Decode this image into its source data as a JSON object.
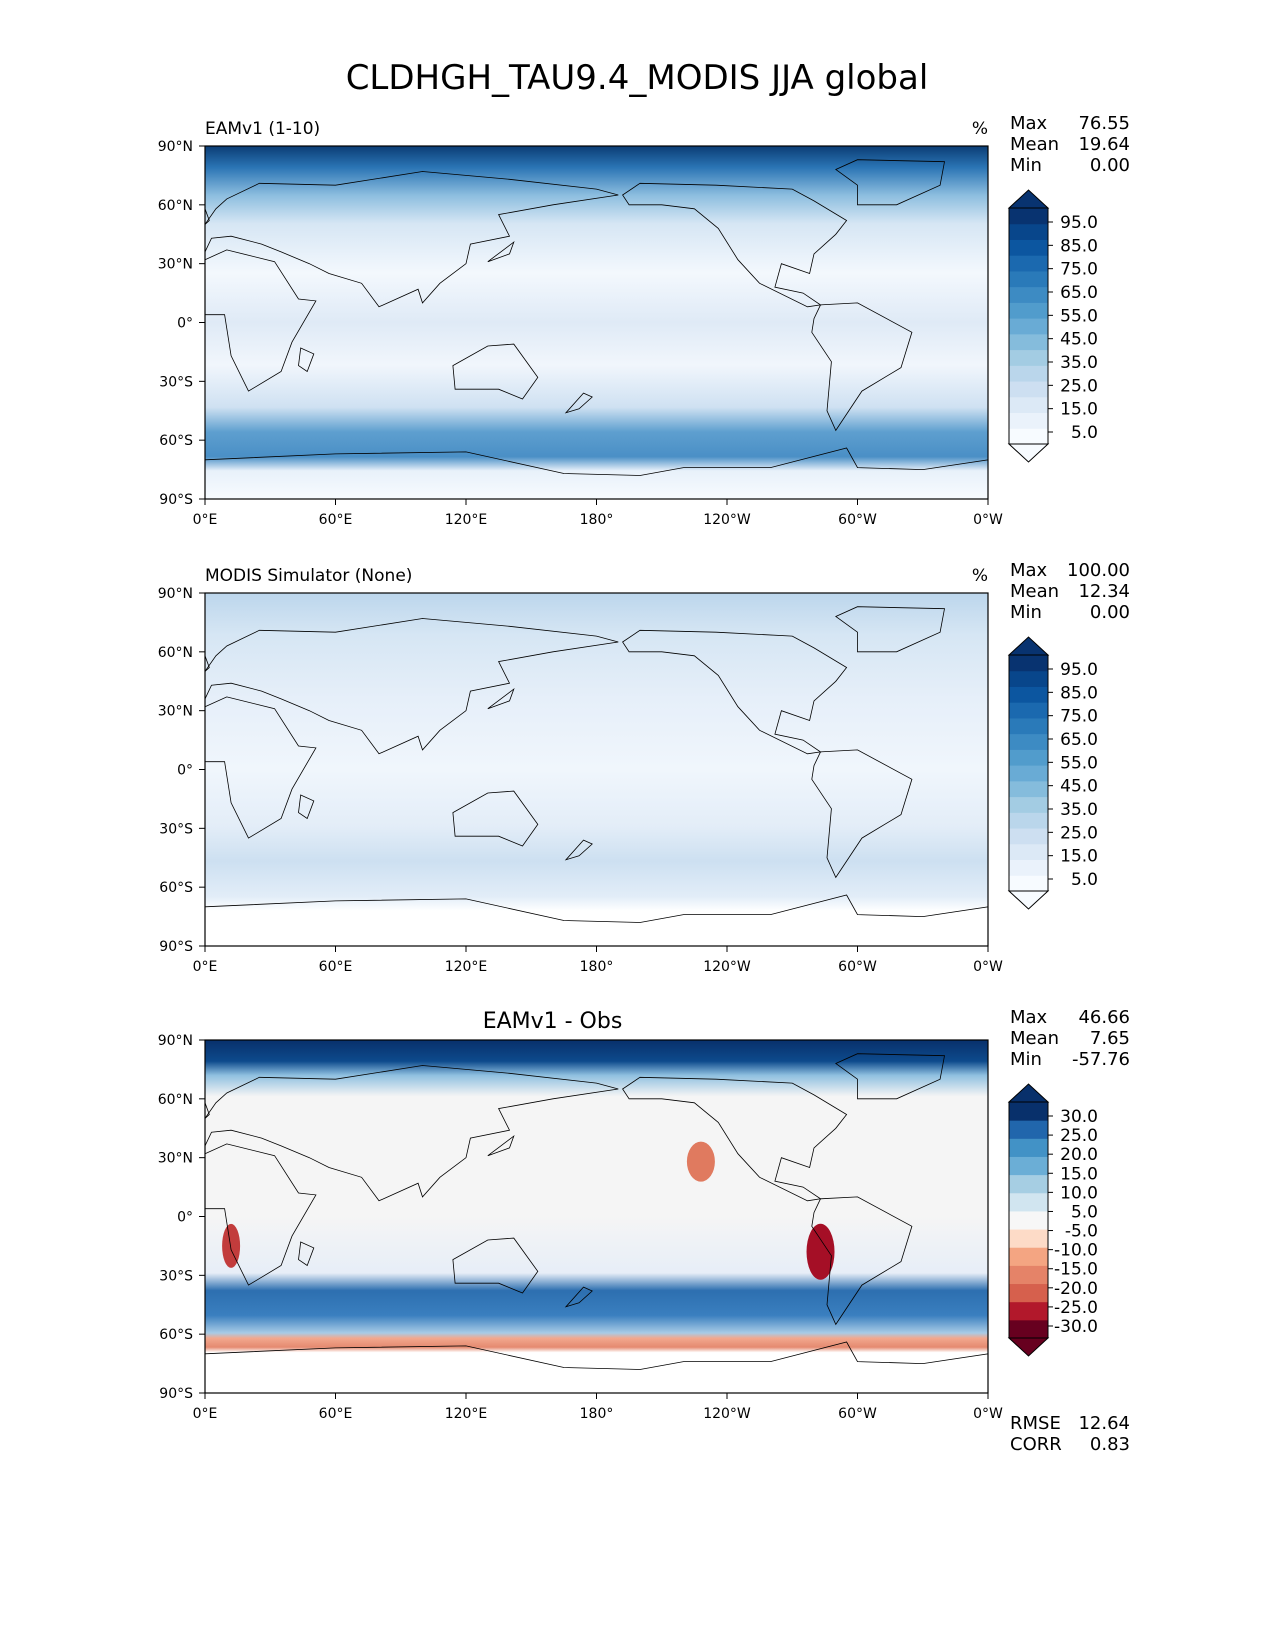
{
  "figure": {
    "title": "CLDHGH_TAU9.4_MODIS JJA global"
  },
  "chart_data": [
    {
      "type": "heatmap",
      "title": "EAMv1 (1-10)",
      "title_position": "left",
      "units": "%",
      "stats": [
        {
          "label": "Max",
          "value": "76.55"
        },
        {
          "label": "Mean",
          "value": "19.64"
        },
        {
          "label": "Min",
          "value": "0.00"
        }
      ],
      "footer_stats": [],
      "x_ticks": [
        "0°E",
        "60°E",
        "120°E",
        "180°",
        "120°W",
        "60°W",
        "0°W"
      ],
      "y_ticks": [
        "90°N",
        "60°N",
        "30°N",
        "0°",
        "30°S",
        "60°S",
        "90°S"
      ],
      "xlim": [
        0,
        360
      ],
      "ylim": [
        -90,
        90
      ],
      "colorbar": {
        "colormap": "Blues",
        "levels": [
          0,
          5,
          10,
          15,
          20,
          25,
          30,
          35,
          40,
          45,
          50,
          55,
          60,
          65,
          70,
          75,
          80,
          85,
          90,
          95,
          100
        ],
        "tick_labels": [
          "95.0",
          "85.0",
          "75.0",
          "65.0",
          "55.0",
          "45.0",
          "35.0",
          "25.0",
          "15.0",
          "5.0"
        ],
        "extend": "both"
      }
    },
    {
      "type": "heatmap",
      "title": "MODIS Simulator (None)",
      "title_position": "left",
      "units": "%",
      "stats": [
        {
          "label": "Max",
          "value": "100.00"
        },
        {
          "label": "Mean",
          "value": "12.34"
        },
        {
          "label": "Min",
          "value": "0.00"
        }
      ],
      "footer_stats": [],
      "x_ticks": [
        "0°E",
        "60°E",
        "120°E",
        "180°",
        "120°W",
        "60°W",
        "0°W"
      ],
      "y_ticks": [
        "90°N",
        "60°N",
        "30°N",
        "0°",
        "30°S",
        "60°S",
        "90°S"
      ],
      "xlim": [
        0,
        360
      ],
      "ylim": [
        -90,
        90
      ],
      "colorbar": {
        "colormap": "Blues",
        "levels": [
          0,
          5,
          10,
          15,
          20,
          25,
          30,
          35,
          40,
          45,
          50,
          55,
          60,
          65,
          70,
          75,
          80,
          85,
          90,
          95,
          100
        ],
        "tick_labels": [
          "95.0",
          "85.0",
          "75.0",
          "65.0",
          "55.0",
          "45.0",
          "35.0",
          "25.0",
          "15.0",
          "5.0"
        ],
        "extend": "both"
      }
    },
    {
      "type": "heatmap",
      "title": "EAMv1 - Obs",
      "title_position": "center",
      "units": "",
      "stats": [
        {
          "label": "Max",
          "value": "46.66"
        },
        {
          "label": "Mean",
          "value": "7.65"
        },
        {
          "label": "Min",
          "value": "-57.76"
        }
      ],
      "footer_stats": [
        {
          "label": "RMSE",
          "value": "12.64"
        },
        {
          "label": "CORR",
          "value": "0.83"
        }
      ],
      "x_ticks": [
        "0°E",
        "60°E",
        "120°E",
        "180°",
        "120°W",
        "60°W",
        "0°W"
      ],
      "y_ticks": [
        "90°N",
        "60°N",
        "30°N",
        "0°",
        "30°S",
        "60°S",
        "90°S"
      ],
      "xlim": [
        0,
        360
      ],
      "ylim": [
        -90,
        90
      ],
      "colorbar": {
        "colormap": "RdBu",
        "levels": [
          -35,
          -30,
          -25,
          -20,
          -15,
          -10,
          -5,
          5,
          10,
          15,
          20,
          25,
          30,
          35
        ],
        "tick_labels": [
          "30.0",
          "25.0",
          "20.0",
          "15.0",
          "10.0",
          "5.0",
          "-5.0",
          "-10.0",
          "-15.0",
          "-20.0",
          "-25.0",
          "-30.0"
        ],
        "extend": "both"
      }
    }
  ]
}
